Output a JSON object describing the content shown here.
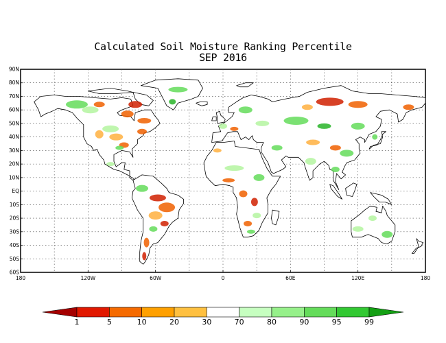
{
  "title": {
    "line1": "Calculated Soil Moisture Ranking Percentile",
    "line2": "SEP 2016"
  },
  "map": {
    "lat_labels": [
      "90N",
      "80N",
      "70N",
      "60N",
      "50N",
      "40N",
      "30N",
      "20N",
      "10N",
      "EQ",
      "10S",
      "20S",
      "30S",
      "40S",
      "50S",
      "60S"
    ],
    "lon_labels": [
      "180",
      "120W",
      "60W",
      "0",
      "60E",
      "120E",
      "180"
    ],
    "grid": "dotted"
  },
  "legend": {
    "tick_labels": [
      "1",
      "5",
      "10",
      "20",
      "30",
      "70",
      "80",
      "90",
      "95",
      "99"
    ],
    "colors": [
      "#a50000",
      "#e11800",
      "#f56a00",
      "#ffa000",
      "#ffc040",
      "#ffffff",
      "#c6ffc0",
      "#96f08a",
      "#64dc5a",
      "#32c832",
      "#14a014"
    ]
  },
  "colors": {
    "land": "#ffffff",
    "coast": "#000000",
    "dry_strong": "#d02000",
    "dry": "#f06000",
    "dry_light": "#ffb040",
    "wet_light": "#b4f5a0",
    "wet": "#64dc5a",
    "wet_strong": "#28b428"
  }
}
